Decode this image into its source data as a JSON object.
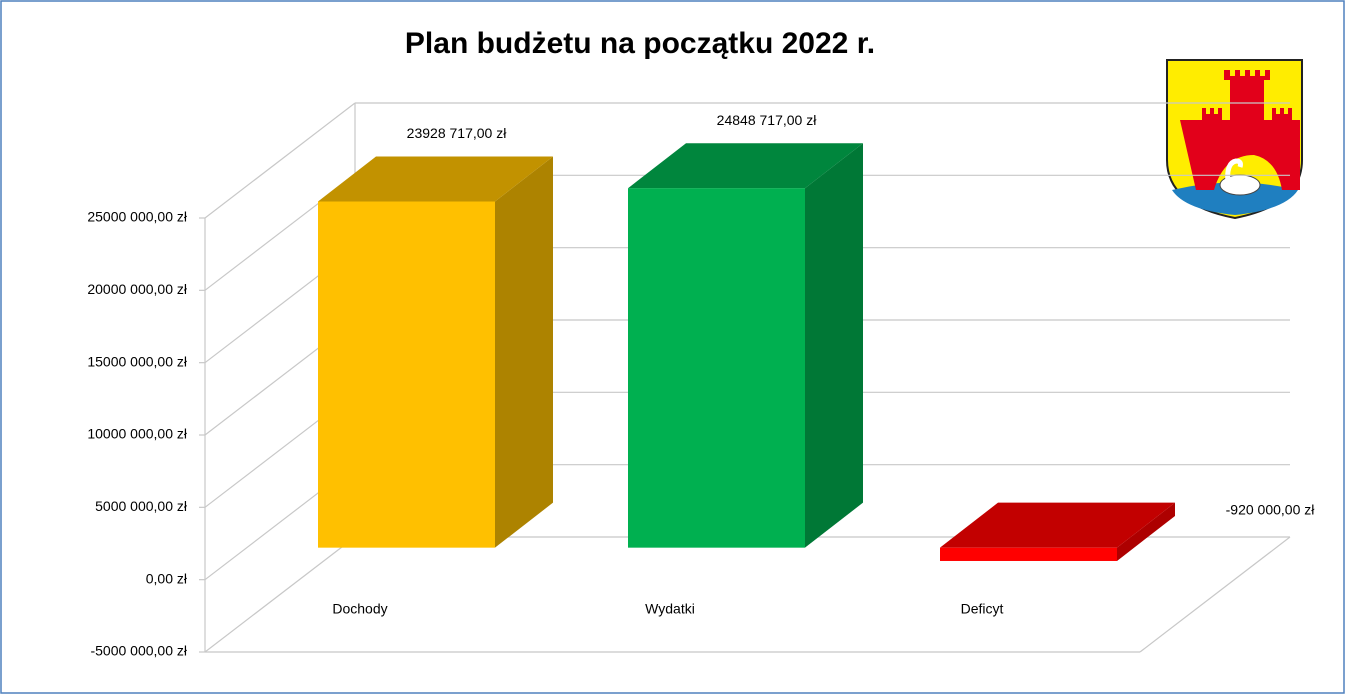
{
  "chart_data": {
    "type": "bar3d",
    "title": "Plan budżetu na początku 2022 r.",
    "categories": [
      "Dochody",
      "Wydatki",
      "Deficyt"
    ],
    "values": [
      23928717,
      24848717,
      -920000
    ],
    "value_labels": [
      "23928 717,00 zł",
      "24848 717,00 zł",
      "-920 000,00 zł"
    ],
    "colors": [
      "#ffc000",
      "#00b050",
      "#ff0000"
    ],
    "ylim": [
      -5000000,
      25000000
    ],
    "yticks": [
      {
        "value": -5000000,
        "label": "-5000 000,00 zł"
      },
      {
        "value": 0,
        "label": "0,00 zł"
      },
      {
        "value": 5000000,
        "label": "5000 000,00 zł"
      },
      {
        "value": 10000000,
        "label": "10000 000,00 zł"
      },
      {
        "value": 15000000,
        "label": "15000 000,00 zł"
      },
      {
        "value": 20000000,
        "label": "20000 000,00 zł"
      },
      {
        "value": 25000000,
        "label": "25000 000,00 zł"
      }
    ],
    "grid": true
  }
}
